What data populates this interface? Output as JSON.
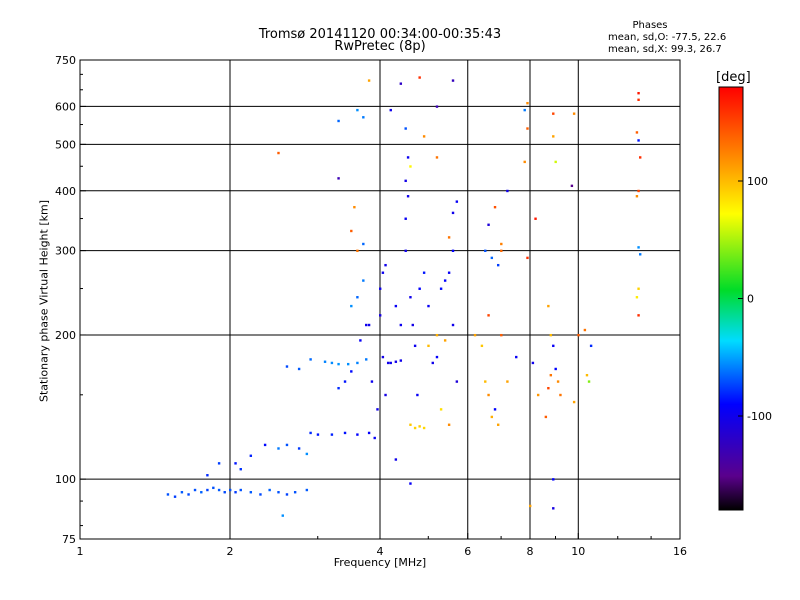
{
  "title": {
    "line1": "Tromsø 20141120 00:34:00-00:35:43",
    "line2": "RwPretec (8p)"
  },
  "phases_box": {
    "title": "Phases",
    "o_line": "mean, sd,O: -77.5, 22.6",
    "x_line": "mean, sd,X:  99.3, 26.7"
  },
  "colorbar": {
    "label": "[deg]",
    "range": [
      -180,
      180
    ],
    "ticks": [
      {
        "value": 100,
        "label": "100"
      },
      {
        "value": 0,
        "label": "0"
      },
      {
        "value": -100,
        "label": "-100"
      }
    ]
  },
  "chart_data": {
    "type": "scatter",
    "xlabel": "Frequency [MHz]",
    "ylabel": "Stationary phase Virtual Height [km]",
    "xscale": "log",
    "yscale": "log",
    "xlim": [
      1,
      16
    ],
    "ylim": [
      75,
      750
    ],
    "grid": true,
    "x_ticks": [
      {
        "value": 1,
        "label": "1"
      },
      {
        "value": 2,
        "label": "2"
      },
      {
        "value": 4,
        "label": "4"
      },
      {
        "value": 6,
        "label": "6"
      },
      {
        "value": 8,
        "label": "8"
      },
      {
        "value": 10,
        "label": "10"
      },
      {
        "value": 16,
        "label": "16"
      }
    ],
    "y_ticks": [
      {
        "value": 75,
        "label": "75"
      },
      {
        "value": 100,
        "label": "100"
      },
      {
        "value": 200,
        "label": "200"
      },
      {
        "value": 300,
        "label": "300"
      },
      {
        "value": 400,
        "label": "400"
      },
      {
        "value": 500,
        "label": "500"
      },
      {
        "value": 600,
        "label": "600"
      },
      {
        "value": 750,
        "label": "750"
      }
    ],
    "x_grid": [
      2,
      4,
      6,
      8,
      10
    ],
    "y_grid": [
      100,
      200,
      300,
      400,
      500,
      600
    ],
    "series": [
      {
        "values": [
          {
            "x": 1.5,
            "y": 93,
            "phase": -70
          },
          {
            "x": 1.55,
            "y": 92,
            "phase": -75
          },
          {
            "x": 1.6,
            "y": 94,
            "phase": -68
          },
          {
            "x": 1.65,
            "y": 93,
            "phase": -72
          },
          {
            "x": 1.7,
            "y": 95,
            "phase": -70
          },
          {
            "x": 1.75,
            "y": 94,
            "phase": -66
          },
          {
            "x": 1.8,
            "y": 95,
            "phase": -74
          },
          {
            "x": 1.85,
            "y": 96,
            "phase": -70
          },
          {
            "x": 1.9,
            "y": 95,
            "phase": -68
          },
          {
            "x": 1.95,
            "y": 94,
            "phase": -72
          },
          {
            "x": 2.0,
            "y": 95,
            "phase": -70
          },
          {
            "x": 2.05,
            "y": 94,
            "phase": -76
          },
          {
            "x": 2.1,
            "y": 95,
            "phase": -70
          },
          {
            "x": 2.2,
            "y": 94,
            "phase": -68
          },
          {
            "x": 2.3,
            "y": 93,
            "phase": -72
          },
          {
            "x": 2.4,
            "y": 95,
            "phase": -66
          },
          {
            "x": 2.5,
            "y": 94,
            "phase": -70
          },
          {
            "x": 2.6,
            "y": 93,
            "phase": -74
          },
          {
            "x": 2.7,
            "y": 94,
            "phase": -70
          },
          {
            "x": 2.85,
            "y": 95,
            "phase": -68
          },
          {
            "x": 1.8,
            "y": 102,
            "phase": -80
          },
          {
            "x": 1.9,
            "y": 108,
            "phase": -75
          },
          {
            "x": 2.05,
            "y": 108,
            "phase": -85
          },
          {
            "x": 2.1,
            "y": 105,
            "phase": -78
          },
          {
            "x": 2.2,
            "y": 112,
            "phase": -82
          },
          {
            "x": 2.35,
            "y": 118,
            "phase": -88
          },
          {
            "x": 2.5,
            "y": 116,
            "phase": -60
          },
          {
            "x": 2.6,
            "y": 118,
            "phase": -70
          },
          {
            "x": 2.75,
            "y": 116,
            "phase": -76
          },
          {
            "x": 2.85,
            "y": 113,
            "phase": -55
          },
          {
            "x": 2.6,
            "y": 172,
            "phase": -72
          },
          {
            "x": 2.75,
            "y": 170,
            "phase": -68
          },
          {
            "x": 2.9,
            "y": 178,
            "phase": -64
          },
          {
            "x": 3.1,
            "y": 176,
            "phase": -58
          },
          {
            "x": 3.2,
            "y": 175,
            "phase": -56
          },
          {
            "x": 3.3,
            "y": 174,
            "phase": -54
          },
          {
            "x": 3.45,
            "y": 174,
            "phase": -55
          },
          {
            "x": 3.6,
            "y": 175,
            "phase": -58
          },
          {
            "x": 3.75,
            "y": 178,
            "phase": -60
          },
          {
            "x": 2.55,
            "y": 84,
            "phase": -55
          },
          {
            "x": 2.9,
            "y": 125,
            "phase": -80
          },
          {
            "x": 3.0,
            "y": 124,
            "phase": -85
          },
          {
            "x": 3.2,
            "y": 124,
            "phase": -82
          },
          {
            "x": 3.4,
            "y": 125,
            "phase": -86
          },
          {
            "x": 3.6,
            "y": 124,
            "phase": -90
          },
          {
            "x": 3.8,
            "y": 125,
            "phase": -92
          },
          {
            "x": 3.9,
            "y": 122,
            "phase": -95
          },
          {
            "x": 3.3,
            "y": 155,
            "phase": -80
          },
          {
            "x": 3.4,
            "y": 160,
            "phase": -85
          },
          {
            "x": 3.5,
            "y": 168,
            "phase": -88
          },
          {
            "x": 3.65,
            "y": 195,
            "phase": -95
          },
          {
            "x": 3.75,
            "y": 210,
            "phase": -100
          },
          {
            "x": 3.5,
            "y": 230,
            "phase": -55
          },
          {
            "x": 3.6,
            "y": 240,
            "phase": -65
          },
          {
            "x": 3.7,
            "y": 260,
            "phase": -60
          },
          {
            "x": 3.8,
            "y": 210,
            "phase": -100
          },
          {
            "x": 3.85,
            "y": 160,
            "phase": -98
          },
          {
            "x": 3.95,
            "y": 140,
            "phase": -100
          },
          {
            "x": 4.0,
            "y": 220,
            "phase": -105
          },
          {
            "x": 4.0,
            "y": 250,
            "phase": -100
          },
          {
            "x": 4.05,
            "y": 180,
            "phase": -102
          },
          {
            "x": 4.05,
            "y": 270,
            "phase": -98
          },
          {
            "x": 4.1,
            "y": 280,
            "phase": -100
          },
          {
            "x": 4.1,
            "y": 150,
            "phase": -104
          },
          {
            "x": 4.15,
            "y": 175,
            "phase": -100
          },
          {
            "x": 4.2,
            "y": 175,
            "phase": -98
          },
          {
            "x": 4.3,
            "y": 176,
            "phase": -102
          },
          {
            "x": 4.4,
            "y": 177,
            "phase": -100
          },
          {
            "x": 4.3,
            "y": 230,
            "phase": -95
          },
          {
            "x": 4.4,
            "y": 210,
            "phase": -98
          },
          {
            "x": 4.5,
            "y": 300,
            "phase": -100
          },
          {
            "x": 4.5,
            "y": 350,
            "phase": -96
          },
          {
            "x": 4.55,
            "y": 390,
            "phase": -100
          },
          {
            "x": 4.5,
            "y": 420,
            "phase": -102
          },
          {
            "x": 4.55,
            "y": 470,
            "phase": -98
          },
          {
            "x": 4.6,
            "y": 240,
            "phase": -100
          },
          {
            "x": 4.65,
            "y": 210,
            "phase": -102
          },
          {
            "x": 4.7,
            "y": 190,
            "phase": -98
          },
          {
            "x": 4.75,
            "y": 150,
            "phase": -95
          },
          {
            "x": 4.6,
            "y": 130,
            "phase": 95
          },
          {
            "x": 4.7,
            "y": 128,
            "phase": 90
          },
          {
            "x": 4.8,
            "y": 129,
            "phase": 92
          },
          {
            "x": 4.9,
            "y": 128,
            "phase": 88
          },
          {
            "x": 4.8,
            "y": 250,
            "phase": -90
          },
          {
            "x": 4.9,
            "y": 270,
            "phase": -85
          },
          {
            "x": 5.0,
            "y": 230,
            "phase": -95
          },
          {
            "x": 5.1,
            "y": 175,
            "phase": -100
          },
          {
            "x": 5.2,
            "y": 180,
            "phase": -92
          },
          {
            "x": 5.3,
            "y": 250,
            "phase": -88
          },
          {
            "x": 5.4,
            "y": 260,
            "phase": -90
          },
          {
            "x": 5.5,
            "y": 270,
            "phase": -95
          },
          {
            "x": 5.6,
            "y": 210,
            "phase": -100
          },
          {
            "x": 5.6,
            "y": 300,
            "phase": -90
          },
          {
            "x": 5.7,
            "y": 160,
            "phase": -110
          },
          {
            "x": 5.0,
            "y": 190,
            "phase": 100
          },
          {
            "x": 5.2,
            "y": 200,
            "phase": 105
          },
          {
            "x": 5.4,
            "y": 195,
            "phase": 110
          },
          {
            "x": 5.5,
            "y": 130,
            "phase": 120
          },
          {
            "x": 5.3,
            "y": 140,
            "phase": 85
          },
          {
            "x": 5.5,
            "y": 320,
            "phase": 130
          },
          {
            "x": 5.6,
            "y": 360,
            "phase": -100
          },
          {
            "x": 5.7,
            "y": 380,
            "phase": -95
          },
          {
            "x": 3.5,
            "y": 330,
            "phase": 140
          },
          {
            "x": 3.6,
            "y": 300,
            "phase": 130
          },
          {
            "x": 3.55,
            "y": 370,
            "phase": 120
          },
          {
            "x": 3.7,
            "y": 310,
            "phase": -65
          },
          {
            "x": 3.6,
            "y": 590,
            "phase": -55
          },
          {
            "x": 3.7,
            "y": 570,
            "phase": -60
          },
          {
            "x": 3.3,
            "y": 560,
            "phase": -65
          },
          {
            "x": 3.8,
            "y": 680,
            "phase": 110
          },
          {
            "x": 4.2,
            "y": 590,
            "phase": -100
          },
          {
            "x": 4.4,
            "y": 670,
            "phase": -120
          },
          {
            "x": 4.8,
            "y": 690,
            "phase": 160
          },
          {
            "x": 5.2,
            "y": 600,
            "phase": -130
          },
          {
            "x": 5.6,
            "y": 680,
            "phase": -125
          },
          {
            "x": 4.5,
            "y": 540,
            "phase": -70
          },
          {
            "x": 4.6,
            "y": 450,
            "phase": 75
          },
          {
            "x": 4.9,
            "y": 520,
            "phase": 120
          },
          {
            "x": 5.2,
            "y": 470,
            "phase": 130
          },
          {
            "x": 3.3,
            "y": 425,
            "phase": -130
          },
          {
            "x": 2.5,
            "y": 480,
            "phase": 140
          },
          {
            "x": 4.3,
            "y": 110,
            "phase": -100
          },
          {
            "x": 4.6,
            "y": 98,
            "phase": -95
          },
          {
            "x": 6.2,
            "y": 200,
            "phase": 110
          },
          {
            "x": 6.4,
            "y": 190,
            "phase": 95
          },
          {
            "x": 6.5,
            "y": 160,
            "phase": 100
          },
          {
            "x": 6.6,
            "y": 150,
            "phase": 120
          },
          {
            "x": 6.7,
            "y": 135,
            "phase": 105
          },
          {
            "x": 6.8,
            "y": 140,
            "phase": -90
          },
          {
            "x": 6.9,
            "y": 130,
            "phase": 110
          },
          {
            "x": 6.5,
            "y": 300,
            "phase": -70
          },
          {
            "x": 6.7,
            "y": 290,
            "phase": -65
          },
          {
            "x": 6.9,
            "y": 280,
            "phase": -75
          },
          {
            "x": 7.0,
            "y": 300,
            "phase": 135
          },
          {
            "x": 6.6,
            "y": 340,
            "phase": -110
          },
          {
            "x": 6.8,
            "y": 370,
            "phase": 145
          },
          {
            "x": 7.2,
            "y": 400,
            "phase": -100
          },
          {
            "x": 7.0,
            "y": 310,
            "phase": 125
          },
          {
            "x": 6.6,
            "y": 220,
            "phase": 150
          },
          {
            "x": 7.0,
            "y": 200,
            "phase": 140
          },
          {
            "x": 7.5,
            "y": 180,
            "phase": -95
          },
          {
            "x": 7.2,
            "y": 160,
            "phase": 110
          },
          {
            "x": 7.9,
            "y": 610,
            "phase": 120
          },
          {
            "x": 7.8,
            "y": 590,
            "phase": -60
          },
          {
            "x": 7.9,
            "y": 540,
            "phase": 140
          },
          {
            "x": 7.8,
            "y": 460,
            "phase": 120
          },
          {
            "x": 7.9,
            "y": 290,
            "phase": 160
          },
          {
            "x": 8.2,
            "y": 350,
            "phase": 170
          },
          {
            "x": 8.1,
            "y": 175,
            "phase": -100
          },
          {
            "x": 8.3,
            "y": 150,
            "phase": 115
          },
          {
            "x": 8.7,
            "y": 230,
            "phase": 110
          },
          {
            "x": 8.8,
            "y": 200,
            "phase": 100
          },
          {
            "x": 8.9,
            "y": 190,
            "phase": -95
          },
          {
            "x": 8.8,
            "y": 165,
            "phase": 130
          },
          {
            "x": 8.7,
            "y": 155,
            "phase": 150
          },
          {
            "x": 8.6,
            "y": 135,
            "phase": 140
          },
          {
            "x": 9.0,
            "y": 170,
            "phase": -90
          },
          {
            "x": 9.1,
            "y": 160,
            "phase": 120
          },
          {
            "x": 9.2,
            "y": 150,
            "phase": 130
          },
          {
            "x": 8.9,
            "y": 580,
            "phase": 150
          },
          {
            "x": 8.9,
            "y": 520,
            "phase": 110
          },
          {
            "x": 9.0,
            "y": 460,
            "phase": 60
          },
          {
            "x": 8.9,
            "y": 100,
            "phase": -90
          },
          {
            "x": 8.9,
            "y": 87,
            "phase": -105
          },
          {
            "x": 8.0,
            "y": 88,
            "phase": 110
          },
          {
            "x": 9.8,
            "y": 580,
            "phase": 120
          },
          {
            "x": 9.7,
            "y": 410,
            "phase": -150
          },
          {
            "x": 10.3,
            "y": 205,
            "phase": 130
          },
          {
            "x": 10.6,
            "y": 190,
            "phase": -80
          },
          {
            "x": 10.4,
            "y": 165,
            "phase": 100
          },
          {
            "x": 10.5,
            "y": 160,
            "phase": 40
          },
          {
            "x": 10.0,
            "y": 200,
            "phase": 140
          },
          {
            "x": 9.8,
            "y": 145,
            "phase": 110
          },
          {
            "x": 13.2,
            "y": 640,
            "phase": 170
          },
          {
            "x": 13.2,
            "y": 620,
            "phase": 160
          },
          {
            "x": 13.1,
            "y": 530,
            "phase": 140
          },
          {
            "x": 13.2,
            "y": 510,
            "phase": -85
          },
          {
            "x": 13.3,
            "y": 470,
            "phase": 160
          },
          {
            "x": 13.2,
            "y": 400,
            "phase": 150
          },
          {
            "x": 13.1,
            "y": 390,
            "phase": 120
          },
          {
            "x": 13.2,
            "y": 305,
            "phase": -55
          },
          {
            "x": 13.3,
            "y": 295,
            "phase": -60
          },
          {
            "x": 13.2,
            "y": 250,
            "phase": 90
          },
          {
            "x": 13.1,
            "y": 240,
            "phase": 80
          },
          {
            "x": 13.2,
            "y": 220,
            "phase": 160
          }
        ]
      }
    ]
  }
}
